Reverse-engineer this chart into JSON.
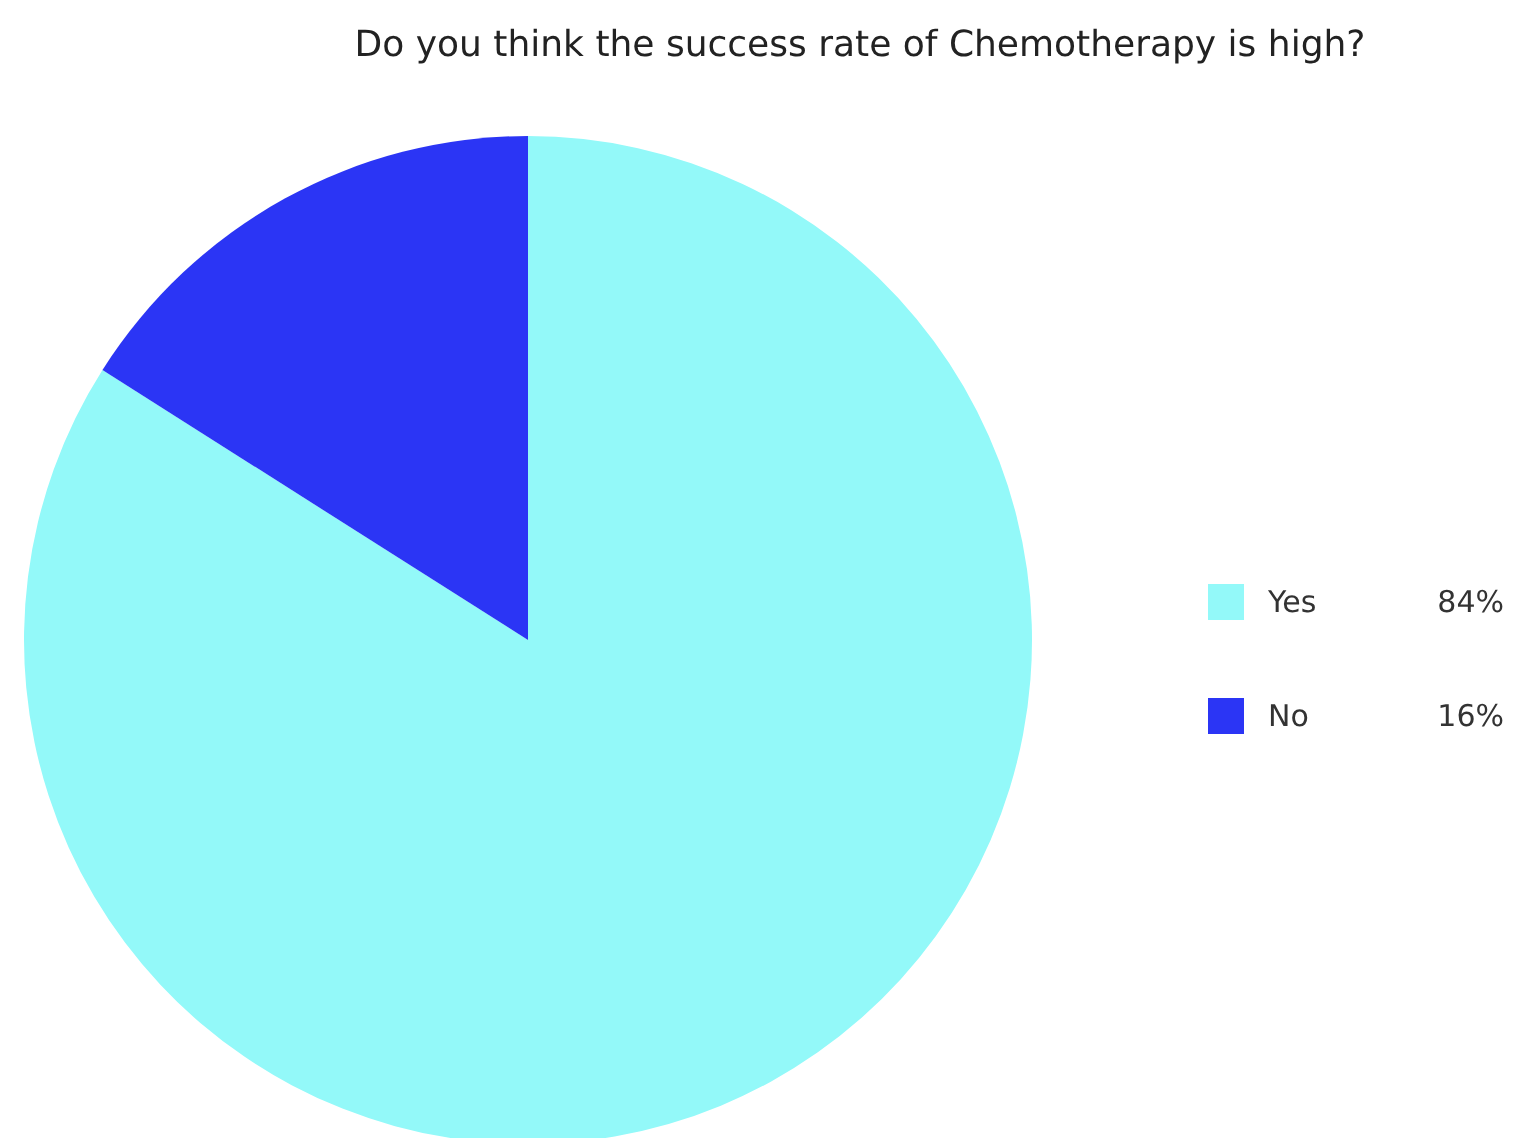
{
  "chart_data": {
    "type": "pie",
    "title": "Do you think the success rate of Chemotherapy is high?",
    "categories": [
      "Yes",
      "No"
    ],
    "values": [
      84,
      16
    ],
    "colors": [
      "#93f9f9",
      "#2b35f5"
    ],
    "value_labels": [
      "84%",
      "16%"
    ],
    "legend": "right"
  }
}
